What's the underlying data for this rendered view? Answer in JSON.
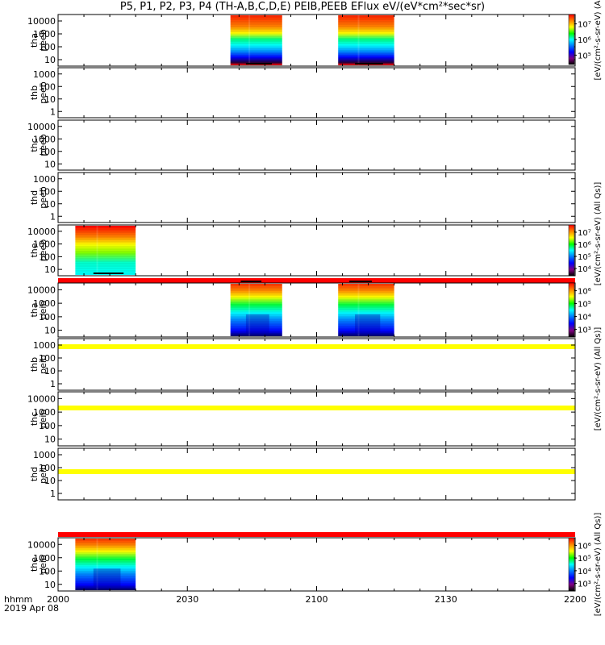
{
  "chart_data": {
    "type": "heatmap",
    "title": "P5, P1, P2, P3, P4 (TH-A,B,C,D,E) PEIB,PEEB EFlux eV/(eV*cm²*sec*sr)",
    "x_axis": {
      "range": [
        "2000",
        "2200"
      ],
      "ticks": [
        "2000",
        "2030",
        "2100",
        "2130",
        "2200"
      ],
      "label_line1": "hhmm",
      "label_line2": "2019 Apr 08"
    },
    "colorbar_palette": [
      "#ff0000",
      "#ff8000",
      "#ffff00",
      "#00ff00",
      "#00ffff",
      "#0080ff",
      "#0000ff",
      "#800080",
      "#000000"
    ],
    "panels": [
      {
        "label": [
          "tha",
          "peeb"
        ],
        "yticks": [
          "10",
          "100",
          "1000",
          "10000"
        ],
        "colorbar": {
          "ticks": [
            "10⁵",
            "10⁶",
            "10⁷"
          ],
          "label": "[eV/(cm²-s-sr-eV) (A"
        },
        "data_blocks": [
          {
            "start": "2040",
            "end": "2052",
            "style": "electron-strong"
          },
          {
            "start": "2105",
            "end": "2118",
            "style": "electron-strong"
          }
        ],
        "mode_bar": null
      },
      {
        "label": [
          "thb",
          "peeb"
        ],
        "yticks": [
          "1",
          "10",
          "100",
          "1000"
        ],
        "colorbar": null,
        "data_blocks": [],
        "mode_bar": null
      },
      {
        "label": [
          "thc",
          "peeb"
        ],
        "yticks": [
          "10",
          "100",
          "1000",
          "10000"
        ],
        "colorbar": null,
        "data_blocks": [],
        "mode_bar": null
      },
      {
        "label": [
          "thd",
          "peeb"
        ],
        "yticks": [
          "1",
          "10",
          "100",
          "1000"
        ],
        "colorbar": null,
        "data_blocks": [],
        "mode_bar": null
      },
      {
        "label": [
          "the",
          "peeb"
        ],
        "yticks": [
          "10",
          "100",
          "1000",
          "10000"
        ],
        "colorbar": {
          "ticks": [
            "10⁴",
            "10⁵",
            "10⁶",
            "10⁷"
          ],
          "label": "[eV/(cm²-s-sr-eV) (All Qs)]"
        },
        "data_blocks": [
          {
            "start": "2004",
            "end": "2018",
            "style": "electron-strong"
          }
        ],
        "mode_bar": "#ff0000"
      },
      {
        "label": [
          "tha",
          "peib"
        ],
        "yticks": [
          "10",
          "100",
          "1000",
          "10000"
        ],
        "colorbar": {
          "ticks": [
            "10³",
            "10⁴",
            "10⁵",
            "10⁶"
          ],
          "label": "[eV/(cm²-s-sr-eV) (All Qs)]"
        },
        "data_blocks": [
          {
            "start": "2040",
            "end": "2052",
            "style": "ion"
          },
          {
            "start": "2105",
            "end": "2118",
            "style": "ion"
          }
        ],
        "mode_bar": "#ffff00"
      },
      {
        "label": [
          "thb",
          "peib"
        ],
        "yticks": [
          "1",
          "10",
          "100",
          "1000"
        ],
        "colorbar": null,
        "data_blocks": [],
        "mode_bar": "#ffff00"
      },
      {
        "label": [
          "thc",
          "peib"
        ],
        "yticks": [
          "10",
          "100",
          "1000",
          "10000"
        ],
        "colorbar": null,
        "data_blocks": [],
        "mode_bar": "#ffff00"
      },
      {
        "label": [
          "thd",
          "peib"
        ],
        "yticks": [
          "1",
          "10",
          "100",
          "1000"
        ],
        "colorbar": null,
        "data_blocks": [],
        "mode_bar": "#ff0000"
      },
      {
        "label": [
          "the",
          "peib"
        ],
        "yticks": [
          "10",
          "100",
          "1000",
          "10000"
        ],
        "colorbar": {
          "ticks": [
            "10³",
            "10⁴",
            "10⁵",
            "10⁶"
          ],
          "label": "[eV/(cm²-s-sr-eV) (All Qs)]"
        },
        "data_blocks": [
          {
            "start": "2004",
            "end": "2018",
            "style": "ion"
          }
        ],
        "mode_bar": null
      }
    ]
  }
}
